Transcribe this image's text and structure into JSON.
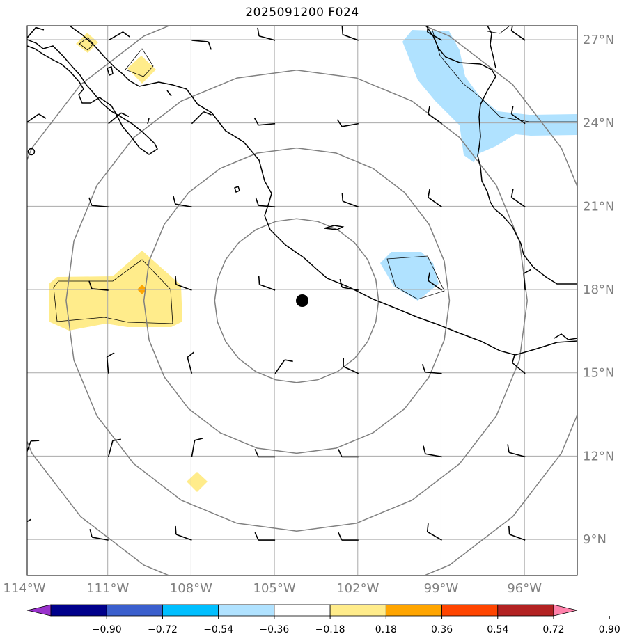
{
  "title": "2025091200 F024",
  "map": {
    "extent": {
      "lon_min": -113.9,
      "lon_max": -94.1,
      "lat_min": 7.7,
      "lat_max": 27.5
    },
    "center": {
      "lon": -104.2,
      "lat": 17.6
    },
    "range_rings_deg": [
      2.95,
      5.5,
      8.3,
      11.0
    ],
    "lon_ticks": [
      -114,
      -111,
      -108,
      -105,
      -102,
      -99,
      -96
    ],
    "lat_ticks": [
      9,
      12,
      15,
      18,
      21,
      24,
      27
    ],
    "lon_tick_labels": [
      "114°W",
      "111°W",
      "108°W",
      "105°W",
      "102°W",
      "99°W",
      "96°W"
    ],
    "lat_tick_labels": [
      "9°N",
      "12°N",
      "15°N",
      "18°N",
      "21°N",
      "24°N",
      "27°N"
    ],
    "grid": true
  },
  "colorbar": {
    "ticks": [
      "−0.90",
      "−0.72",
      "−0.54",
      "−0.36",
      "−0.18",
      "0.18",
      "0.36",
      "0.54",
      "0.72",
      "0.90"
    ],
    "colors": [
      "#9932cc",
      "#00008b",
      "#3a5fcd",
      "#00bfff",
      "#b0e2ff",
      "#ffffff",
      "#ffec8b",
      "#ffa500",
      "#ff4500",
      "#b22222",
      "#ff82ab"
    ]
  },
  "colors": {
    "land_outline": "#000000",
    "ring": "#808080",
    "grid": "#a9a9a9",
    "positive_fill": "#ffec8b",
    "positive_strong": "#ffa500",
    "negative_fill": "#b0e2ff"
  }
}
